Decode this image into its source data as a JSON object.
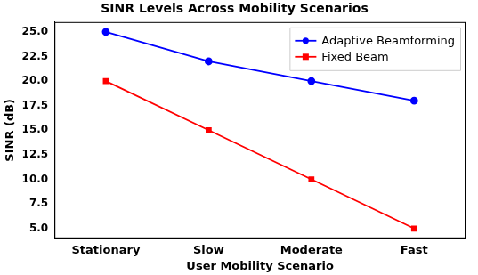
{
  "chart_data": {
    "type": "line",
    "title": "SINR Levels Across Mobility Scenarios",
    "x_label": "User Mobility Scenario",
    "y_label": "SINR (dB)",
    "categories": [
      "Stationary",
      "Slow",
      "Moderate",
      "Fast"
    ],
    "series": [
      {
        "name": "Adaptive Beamforming",
        "color": "blue",
        "marker": "o",
        "line_style": "solid",
        "values": [
          25,
          22,
          20,
          18
        ]
      },
      {
        "name": "Fixed Beam",
        "color": "red",
        "marker": "s",
        "line_style": "solid",
        "values": [
          20,
          15,
          10,
          5
        ]
      }
    ],
    "ylim": [
      4,
      26
    ],
    "yticks": [
      {
        "value": 5,
        "label": "5.0"
      },
      {
        "value": 7.5,
        "label": "7.5"
      },
      {
        "value": 10,
        "label": "10.0"
      },
      {
        "value": 12.5,
        "label": "12.5"
      },
      {
        "value": 15,
        "label": "15.0"
      },
      {
        "value": 17.5,
        "label": "17.5"
      },
      {
        "value": 20,
        "label": "20.0"
      },
      {
        "value": 22.5,
        "label": "22.5"
      },
      {
        "value": 25,
        "label": "25.0"
      }
    ],
    "grid": false,
    "legend": "upper right"
  }
}
